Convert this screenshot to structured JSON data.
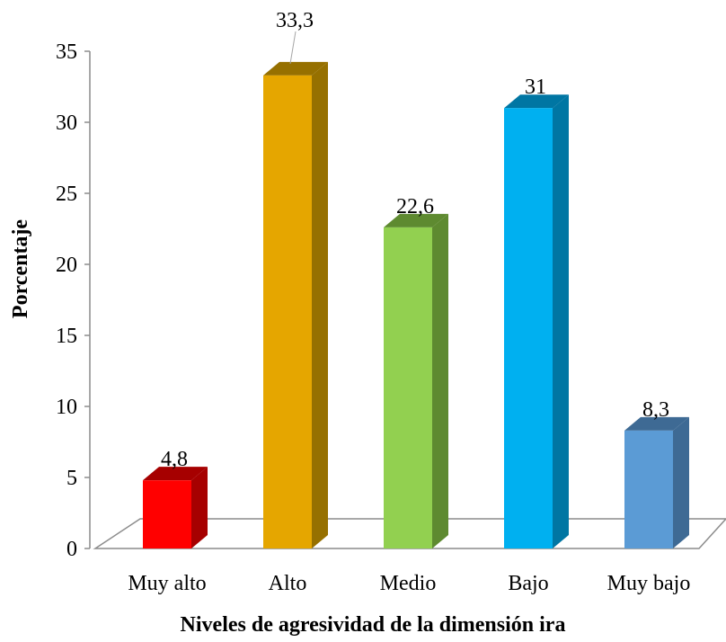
{
  "chart_data": {
    "type": "bar",
    "title": "",
    "xlabel": "Niveles de agresividad de la dimensión ira",
    "ylabel": "Porcentaje",
    "ylim": [
      0,
      35
    ],
    "yticks": [
      "0",
      "5",
      "10",
      "15",
      "20",
      "25",
      "30",
      "35"
    ],
    "categories": [
      "Muy alto",
      "Alto",
      "Medio",
      "Bajo",
      "Muy bajo"
    ],
    "values": [
      4.8,
      33.3,
      22.6,
      31,
      8.3
    ],
    "value_labels": [
      "4,8",
      "33,3",
      "22,6",
      "31",
      "8,3"
    ],
    "colors": [
      "#ff0000",
      "#e5a600",
      "#92d050",
      "#00b0f0",
      "#5b9bd5"
    ],
    "side_colors": [
      "#a60000",
      "#967000",
      "#5e8a30",
      "#0076a3",
      "#3e6a94"
    ],
    "grid": false,
    "legend": "none",
    "style": "3d-columns"
  }
}
